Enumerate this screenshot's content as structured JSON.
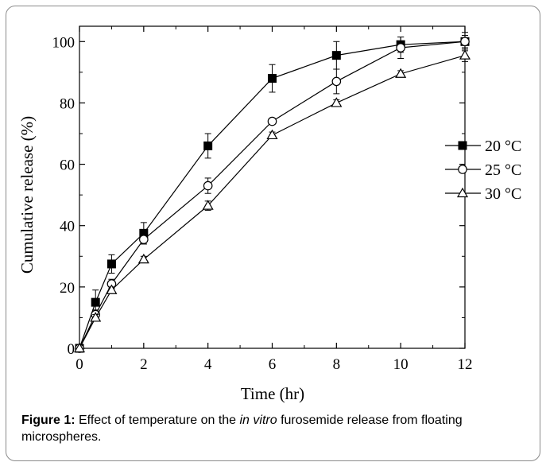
{
  "chart_data": {
    "type": "line",
    "title": "",
    "xlabel": "Time (hr)",
    "ylabel": "Cumulative release (%)",
    "xlim": [
      0,
      12
    ],
    "ylim": [
      0,
      105
    ],
    "x_ticks": [
      0,
      2,
      4,
      6,
      8,
      10,
      12
    ],
    "y_ticks": [
      0,
      20,
      40,
      60,
      80,
      100
    ],
    "grid": false,
    "legend_position": "right",
    "series": [
      {
        "name": "20 °C",
        "marker": "filled-square",
        "color": "#000000",
        "x": [
          0,
          0.5,
          1,
          2,
          4,
          6,
          8,
          10,
          12
        ],
        "y": [
          0,
          15,
          27.5,
          37.5,
          66,
          88,
          95.5,
          99,
          100
        ],
        "error": [
          0,
          4,
          3,
          3.5,
          4,
          4.5,
          4.5,
          2.5,
          3
        ]
      },
      {
        "name": "25 °C",
        "marker": "open-circle",
        "color": "#000000",
        "x": [
          0,
          0.5,
          1,
          2,
          4,
          6,
          8,
          10,
          12
        ],
        "y": [
          0,
          11,
          21,
          35.5,
          53,
          74,
          87,
          98,
          100
        ],
        "error": [
          0,
          1.5,
          1.5,
          1.5,
          2.5,
          1,
          4,
          3.5,
          2
        ]
      },
      {
        "name": "30 °C",
        "marker": "open-triangle",
        "color": "#000000",
        "x": [
          0,
          0.5,
          1,
          2,
          4,
          6,
          8,
          10,
          12
        ],
        "y": [
          0,
          10,
          19,
          29,
          46.5,
          69.5,
          80,
          89.5,
          95.5
        ],
        "error": [
          0,
          1,
          1,
          1,
          1.5,
          1,
          1,
          1,
          2
        ]
      }
    ]
  },
  "caption": {
    "label": "Figure 1:",
    "text_before": " Effect of temperature on the ",
    "italic": "in vitro",
    "text_after": " furosemide release from floating microspheres."
  }
}
